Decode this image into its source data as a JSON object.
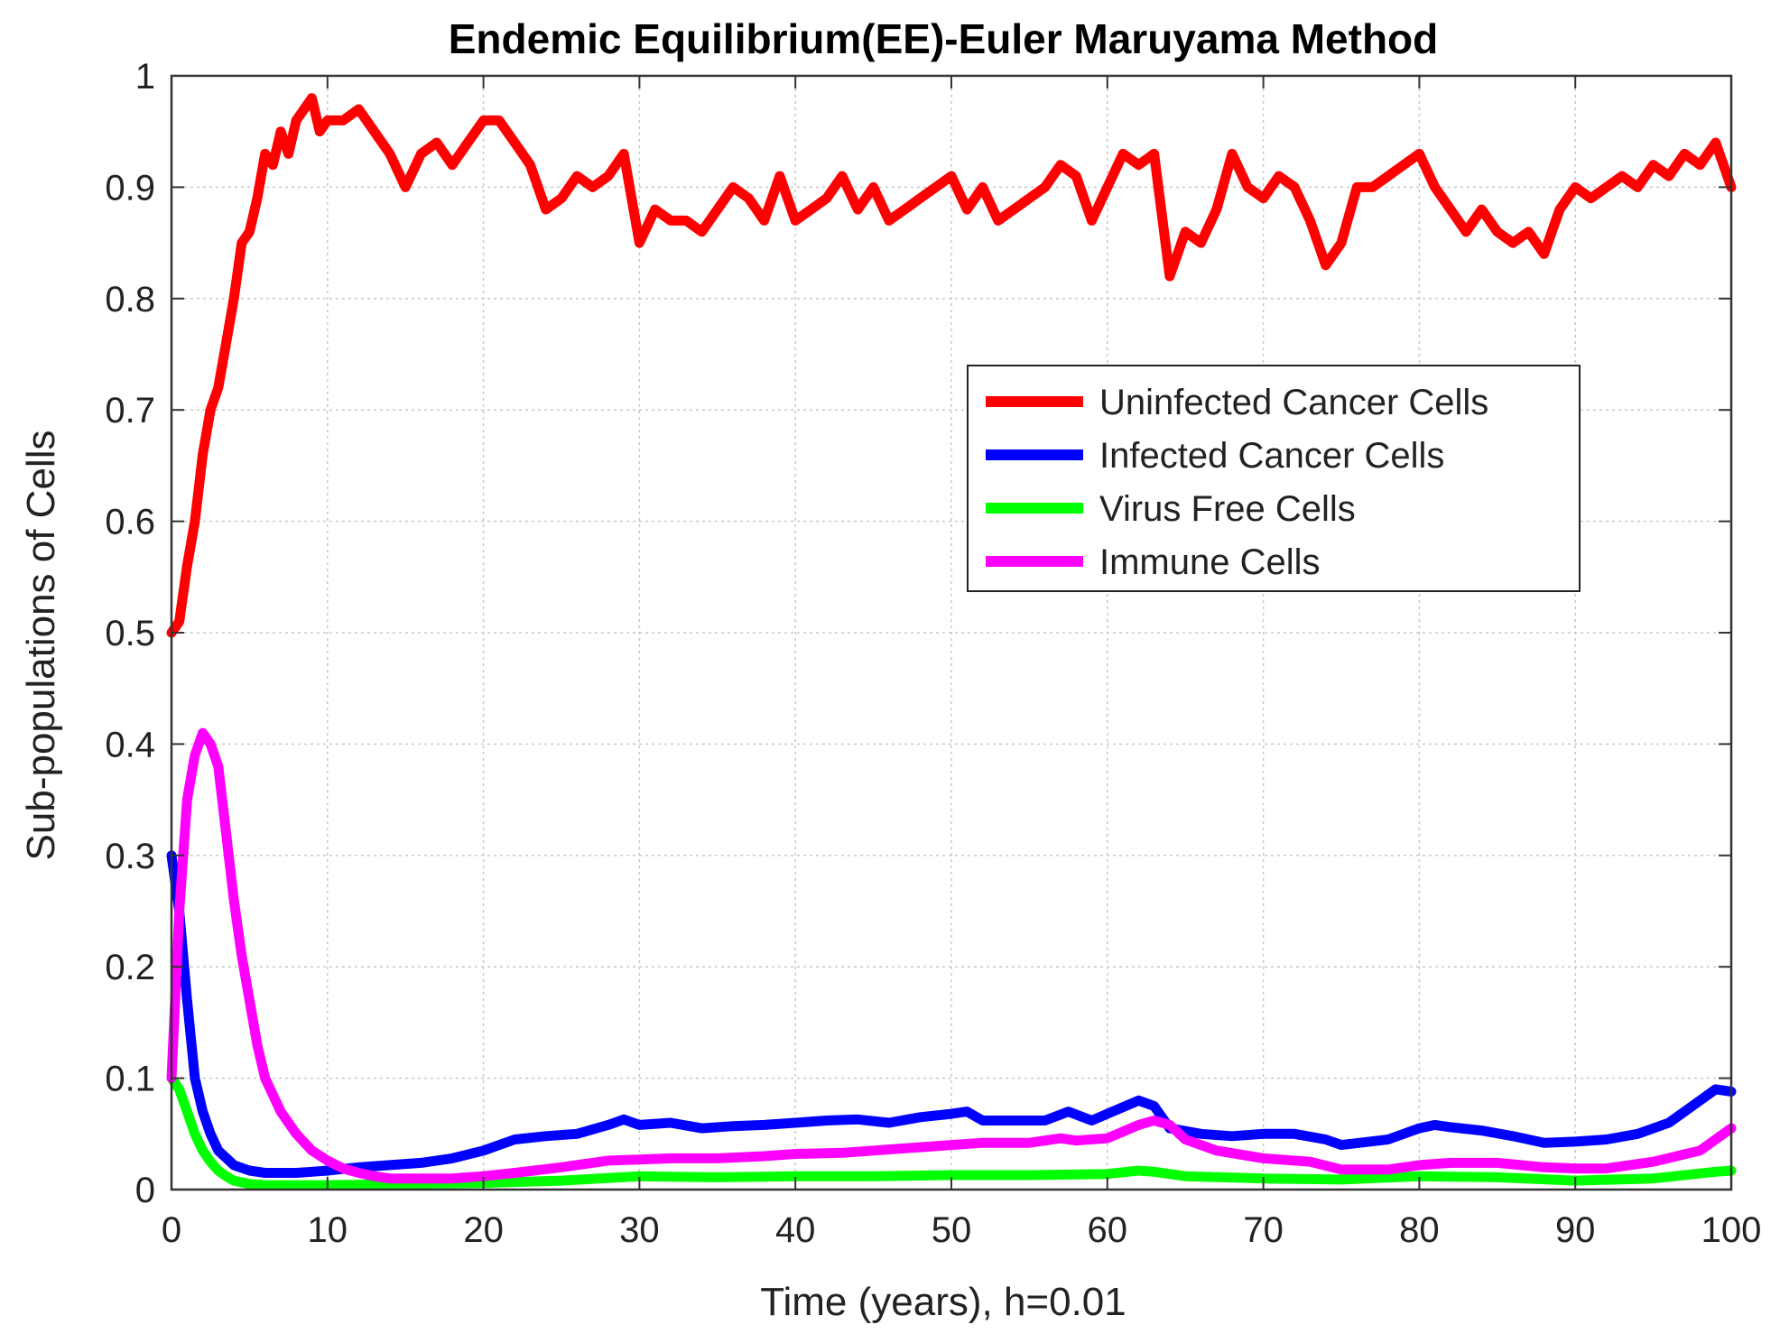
{
  "chart_data": {
    "type": "line",
    "title": "Endemic Equilibrium(EE)-Euler Maruyama Method",
    "xlabel": "Time (years), h=0.01",
    "ylabel": "Sub-populations of Cells",
    "xlim": [
      0,
      100
    ],
    "ylim": [
      0,
      1
    ],
    "xticks": [
      0,
      10,
      20,
      30,
      40,
      50,
      60,
      70,
      80,
      90,
      100
    ],
    "yticks": [
      0,
      0.1,
      0.2,
      0.3,
      0.4,
      0.5,
      0.6,
      0.7,
      0.8,
      0.9,
      1
    ],
    "xtick_labels": [
      "0",
      "10",
      "20",
      "30",
      "40",
      "50",
      "60",
      "70",
      "80",
      "90",
      "100"
    ],
    "ytick_labels": [
      "0",
      "0.1",
      "0.2",
      "0.3",
      "0.4",
      "0.5",
      "0.6",
      "0.7",
      "0.8",
      "0.9",
      "1"
    ],
    "grid": true,
    "legend_position": "center-right",
    "series": [
      {
        "name": "Uninfected Cancer Cells",
        "color": "#ff0000",
        "x": [
          0,
          0.5,
          1,
          1.5,
          2,
          2.5,
          3,
          3.5,
          4,
          4.5,
          5,
          5.5,
          6,
          6.5,
          7,
          7.5,
          8,
          8.5,
          9,
          9.5,
          10,
          11,
          12,
          13,
          14,
          15,
          16,
          17,
          18,
          19,
          20,
          21,
          22,
          23,
          24,
          25,
          26,
          27,
          28,
          29,
          30,
          31,
          32,
          33,
          34,
          35,
          36,
          37,
          38,
          39,
          40,
          41,
          42,
          43,
          44,
          45,
          46,
          47,
          48,
          49,
          50,
          51,
          52,
          53,
          54,
          55,
          56,
          57,
          58,
          59,
          60,
          61,
          62,
          63,
          64,
          65,
          66,
          67,
          68,
          69,
          70,
          71,
          72,
          73,
          74,
          75,
          76,
          77,
          78,
          79,
          80,
          81,
          82,
          83,
          84,
          85,
          86,
          87,
          88,
          89,
          90,
          91,
          92,
          93,
          94,
          95,
          96,
          97,
          98,
          99,
          100
        ],
        "y": [
          0.5,
          0.51,
          0.56,
          0.6,
          0.66,
          0.7,
          0.72,
          0.76,
          0.8,
          0.85,
          0.86,
          0.89,
          0.93,
          0.92,
          0.95,
          0.93,
          0.96,
          0.97,
          0.98,
          0.95,
          0.96,
          0.96,
          0.97,
          0.95,
          0.93,
          0.9,
          0.93,
          0.94,
          0.92,
          0.94,
          0.96,
          0.96,
          0.94,
          0.92,
          0.88,
          0.89,
          0.91,
          0.9,
          0.91,
          0.93,
          0.85,
          0.88,
          0.87,
          0.87,
          0.86,
          0.88,
          0.9,
          0.89,
          0.87,
          0.91,
          0.87,
          0.88,
          0.89,
          0.91,
          0.88,
          0.9,
          0.87,
          0.88,
          0.89,
          0.9,
          0.91,
          0.88,
          0.9,
          0.87,
          0.88,
          0.89,
          0.9,
          0.92,
          0.91,
          0.87,
          0.9,
          0.93,
          0.92,
          0.93,
          0.82,
          0.86,
          0.85,
          0.88,
          0.93,
          0.9,
          0.89,
          0.91,
          0.9,
          0.87,
          0.83,
          0.85,
          0.9,
          0.9,
          0.91,
          0.92,
          0.93,
          0.9,
          0.88,
          0.86,
          0.88,
          0.86,
          0.85,
          0.86,
          0.84,
          0.88,
          0.9,
          0.89,
          0.9,
          0.91,
          0.9,
          0.92,
          0.91,
          0.93,
          0.92,
          0.94,
          0.9
        ]
      },
      {
        "name": "Infected Cancer Cells",
        "color": "#0000ff",
        "x": [
          0,
          0.5,
          1,
          1.5,
          2,
          2.5,
          3,
          4,
          5,
          6,
          7,
          8,
          9,
          10,
          12,
          14,
          16,
          18,
          20,
          22,
          24,
          26,
          28,
          29,
          30,
          32,
          34,
          36,
          38,
          40,
          42,
          44,
          46,
          48,
          50,
          51,
          52,
          54,
          56,
          57.5,
          59,
          60,
          62,
          63,
          64,
          66,
          68,
          70,
          72,
          74,
          75,
          78,
          80,
          81,
          82,
          84,
          86,
          88,
          90,
          92,
          94,
          96,
          98,
          99,
          100
        ],
        "y": [
          0.3,
          0.25,
          0.17,
          0.1,
          0.07,
          0.05,
          0.035,
          0.022,
          0.017,
          0.015,
          0.015,
          0.015,
          0.016,
          0.017,
          0.02,
          0.022,
          0.024,
          0.028,
          0.035,
          0.045,
          0.048,
          0.05,
          0.058,
          0.063,
          0.058,
          0.06,
          0.055,
          0.057,
          0.058,
          0.06,
          0.062,
          0.063,
          0.06,
          0.065,
          0.068,
          0.07,
          0.062,
          0.062,
          0.062,
          0.07,
          0.062,
          0.068,
          0.08,
          0.075,
          0.055,
          0.05,
          0.048,
          0.05,
          0.05,
          0.045,
          0.04,
          0.045,
          0.055,
          0.058,
          0.056,
          0.053,
          0.048,
          0.042,
          0.043,
          0.045,
          0.05,
          0.06,
          0.08,
          0.09,
          0.088
        ]
      },
      {
        "name": "Virus Free Cells",
        "color": "#00ff00",
        "x": [
          0,
          0.5,
          1,
          1.5,
          2,
          2.5,
          3,
          3.5,
          4,
          5,
          6,
          8,
          10,
          15,
          20,
          25,
          30,
          35,
          40,
          45,
          50,
          55,
          60,
          62,
          63,
          65,
          70,
          75,
          80,
          85,
          90,
          95,
          99,
          100
        ],
        "y": [
          0.1,
          0.09,
          0.07,
          0.05,
          0.035,
          0.025,
          0.017,
          0.012,
          0.008,
          0.005,
          0.004,
          0.004,
          0.004,
          0.005,
          0.006,
          0.008,
          0.012,
          0.011,
          0.012,
          0.012,
          0.013,
          0.013,
          0.014,
          0.017,
          0.016,
          0.012,
          0.01,
          0.009,
          0.012,
          0.011,
          0.008,
          0.01,
          0.016,
          0.017
        ]
      },
      {
        "name": "Immune Cells",
        "color": "#ff00ff",
        "x": [
          0,
          0.5,
          1,
          1.5,
          2,
          2.5,
          3,
          3.5,
          4,
          4.5,
          5,
          5.5,
          6,
          7,
          8,
          9,
          10,
          11,
          12,
          13,
          14,
          15,
          16,
          18,
          20,
          22,
          25,
          28,
          30,
          32,
          35,
          38,
          40,
          43,
          45,
          48,
          50,
          52,
          55,
          57,
          58,
          60,
          62,
          63,
          64,
          65,
          67,
          70,
          73,
          75,
          78,
          80,
          82,
          85,
          88,
          90,
          92,
          95,
          98,
          100
        ],
        "y": [
          0.1,
          0.25,
          0.35,
          0.39,
          0.41,
          0.4,
          0.38,
          0.32,
          0.26,
          0.21,
          0.17,
          0.13,
          0.1,
          0.07,
          0.05,
          0.035,
          0.026,
          0.019,
          0.015,
          0.012,
          0.01,
          0.01,
          0.01,
          0.01,
          0.012,
          0.015,
          0.02,
          0.026,
          0.027,
          0.028,
          0.028,
          0.03,
          0.032,
          0.033,
          0.035,
          0.038,
          0.04,
          0.042,
          0.042,
          0.046,
          0.044,
          0.046,
          0.058,
          0.062,
          0.058,
          0.045,
          0.035,
          0.028,
          0.025,
          0.018,
          0.018,
          0.022,
          0.024,
          0.024,
          0.02,
          0.019,
          0.019,
          0.025,
          0.035,
          0.055
        ]
      }
    ]
  }
}
